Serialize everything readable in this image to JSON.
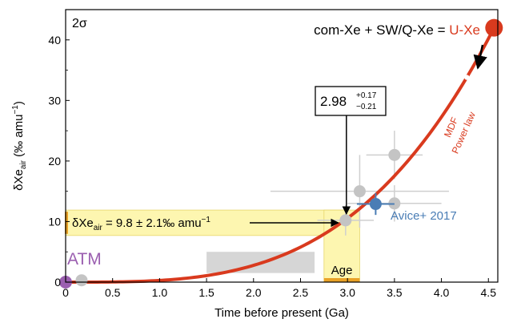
{
  "chart_data": {
    "type": "scatter",
    "xlabel": "Time before present (Ga)",
    "ylabel_main": "δXe",
    "ylabel_sub": "air",
    "ylabel_paren_open": " (‰ amu",
    "ylabel_sup": "−1",
    "ylabel_paren_close": ")",
    "xlim": [
      0,
      4.6
    ],
    "ylim": [
      0,
      45
    ],
    "x_ticks": [
      0,
      0.5,
      1.0,
      1.5,
      2.0,
      2.5,
      3.0,
      3.5,
      4.0,
      4.5
    ],
    "x_tick_labels": [
      "0",
      "0.5",
      "1.0",
      "1.5",
      "2.0",
      "2.5",
      "3.0",
      "3.5",
      "4.0",
      "4.5"
    ],
    "y_ticks": [
      0,
      10,
      20,
      30,
      40
    ],
    "y_tick_labels": [
      "0",
      "10",
      "20",
      "30",
      "40"
    ],
    "grid": false,
    "corner_label": "2σ",
    "curve": {
      "name_line1": "MDF",
      "name_line2": "Power law",
      "form": "power",
      "amplitude": 42,
      "exponent": 3.3,
      "x_end": 4.56,
      "color": "#d93a1e"
    },
    "gray_points": [
      {
        "x": 0.17,
        "y": 0.3,
        "xerr": 0,
        "yerr": 0
      },
      {
        "x": 2.98,
        "y": 10.2,
        "xerr": 0.3,
        "yerr": 2.5
      },
      {
        "x": 3.13,
        "y": 15.0,
        "xerr": 0.95,
        "yerr": 6.0
      },
      {
        "x": 3.5,
        "y": 13.0,
        "xerr": 0.5,
        "yerr": 3.0
      },
      {
        "x": 3.5,
        "y": 21.0,
        "xerr": 0.3,
        "yerr": 4.0
      }
    ],
    "gray_rect": {
      "x0": 1.5,
      "x1": 2.65,
      "y0": 1.5,
      "y1": 5.0
    },
    "avice": {
      "name": "Avice+ 2017",
      "x": 3.3,
      "y": 12.9,
      "xerr": 0.2,
      "yerr": 1.8,
      "color": "#4a7db5"
    },
    "atm": {
      "name": "ATM",
      "x": 0,
      "y": 0,
      "color": "#9b5fb0"
    },
    "uxe": {
      "label_prefix": "com-Xe + SW/Q-Xe = ",
      "label_name": "U-Xe",
      "x": 4.56,
      "y": 42,
      "color": "#d93a1e"
    },
    "yellow_band": {
      "y0": 7.7,
      "y1": 11.9,
      "x_end": 2.98,
      "color": "#fdf6b0"
    },
    "band_label": {
      "main": "δXe",
      "sub": "air",
      "rest": " = 9.8 ± 2.1‰ amu",
      "sup": "−1"
    },
    "age_box": {
      "x0": 2.75,
      "x1": 3.13,
      "label": "Age",
      "color": "#e9a227"
    },
    "age_callout": {
      "value": "2.98",
      "plus": "+0.17",
      "minus": "−0.21"
    }
  }
}
